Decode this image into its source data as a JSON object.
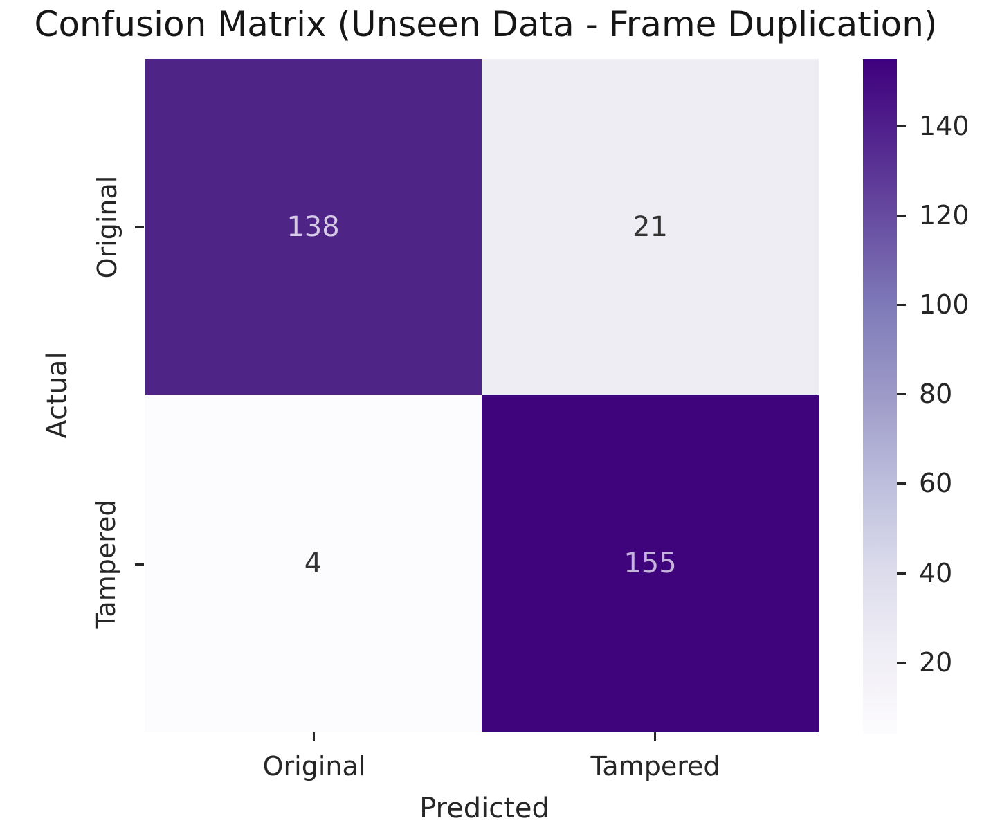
{
  "chart_data": {
    "type": "heatmap",
    "title": "Confusion Matrix (Unseen Data - Frame Duplication)",
    "xlabel": "Predicted",
    "ylabel": "Actual",
    "x_categories": [
      "Original",
      "Tampered"
    ],
    "y_categories": [
      "Original",
      "Tampered"
    ],
    "values": [
      [
        138,
        21
      ],
      [
        4,
        155
      ]
    ],
    "vmin": 4,
    "vmax": 155,
    "colormap": "Purples",
    "legend_position": "right-colorbar",
    "grid": false,
    "colorbar_ticks": [
      140,
      120,
      100,
      80,
      60,
      40,
      20
    ],
    "colorbar_gradient": [
      "#3f007d",
      "#54278f",
      "#6a51a3",
      "#807dba",
      "#9e9ac8",
      "#bcbddc",
      "#dadaeb",
      "#efedf5",
      "#fcfbfd"
    ],
    "cell_colors": [
      [
        "#4e2487",
        "#efedf4"
      ],
      [
        "#fcfbfd",
        "#3f047b"
      ]
    ],
    "cell_text_colors": [
      [
        "#d5cbe6",
        "#333333"
      ],
      [
        "#333333",
        "#c5b3dd"
      ]
    ],
    "text_color": "#262626",
    "title_color": "#161616",
    "background_color": "#ffffff"
  }
}
